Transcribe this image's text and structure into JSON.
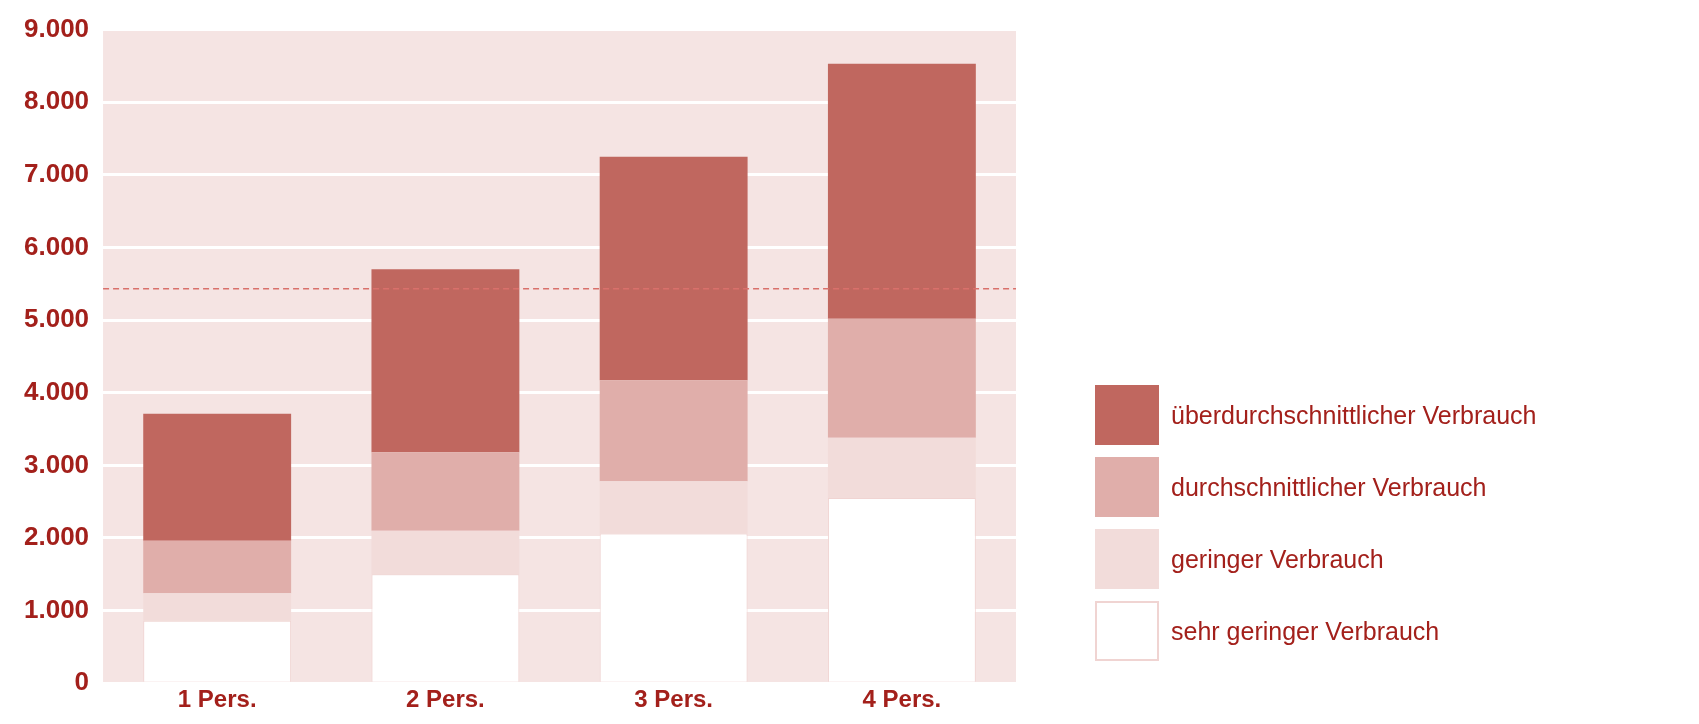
{
  "chart_data": {
    "type": "bar",
    "stacked": true,
    "categories": [
      "1 Pers.",
      "2 Pers.",
      "3 Pers.",
      "4 Pers."
    ],
    "series": [
      {
        "name": "sehr geringer Verbrauch",
        "color": "#ffffff",
        "values": [
          860,
          1500,
          2060,
          2550
        ]
      },
      {
        "name": "geringer Verbrauch",
        "color": "#f2dcda",
        "values": [
          380,
          600,
          720,
          830
        ]
      },
      {
        "name": "durchschnittlicher Verbrauch",
        "color": "#e0aeaa",
        "values": [
          720,
          1080,
          1390,
          1640
        ]
      },
      {
        "name": "überdurchschnittlicher Verbrauch",
        "color": "#c0675f",
        "values": [
          1750,
          2520,
          3080,
          3510
        ]
      }
    ],
    "ylim": [
      0,
      9000
    ],
    "yticks": [
      0,
      {
        "value": 1000,
        "label": "1.000"
      },
      {
        "value": 2000,
        "label": "2.000"
      },
      {
        "value": 3000,
        "label": "3.000"
      },
      {
        "value": 4000,
        "label": "4.000"
      },
      {
        "value": 5000,
        "label": "5.000"
      },
      {
        "value": 6000,
        "label": "6.000"
      },
      {
        "value": 7000,
        "label": "7.000"
      },
      {
        "value": 8000,
        "label": "8.000"
      },
      {
        "value": 9000,
        "label": "9.000"
      }
    ],
    "ref_lines": [
      {
        "axis": "y",
        "value": 5430,
        "color": "#d9706b",
        "line_style": "dashed"
      }
    ],
    "grid": "y",
    "legend": "right"
  }
}
